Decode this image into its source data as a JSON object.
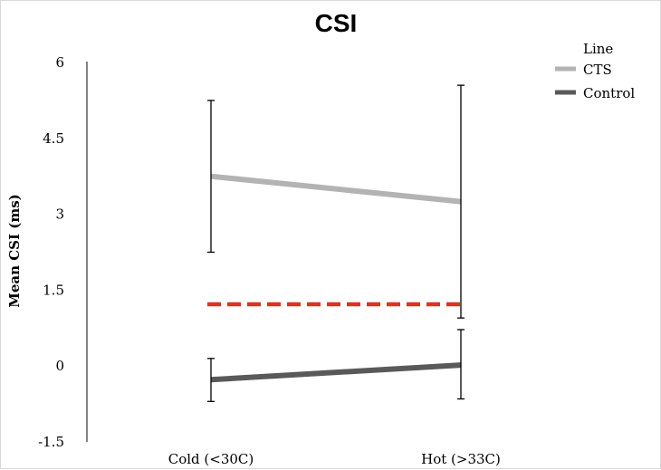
{
  "chart_data": {
    "type": "line",
    "title": "CSI",
    "xlabel": "",
    "ylabel": "Mean CSI (ms)",
    "categories": [
      "Cold (<30C)",
      "Hot (>33C)"
    ],
    "ylim": [
      -1.5,
      6
    ],
    "yticks": [
      "6",
      "4.5",
      "3",
      "1.5",
      "0",
      "-1.5"
    ],
    "ytick_values": [
      6,
      4.5,
      3,
      1.5,
      0,
      -1.5
    ],
    "legend": {
      "title": "Line",
      "position": "top-right"
    },
    "series": [
      {
        "name": "CTS",
        "color": "#b3b3b3",
        "values": [
          3.75,
          3.25
        ],
        "err_low": [
          2.25,
          0.95
        ],
        "err_high": [
          5.25,
          5.55
        ]
      },
      {
        "name": "Control",
        "color": "#595959",
        "values": [
          -0.27,
          0.02
        ],
        "err_low": [
          -0.7,
          -0.65
        ],
        "err_high": [
          0.15,
          0.72
        ]
      }
    ],
    "reference_line": {
      "value": 1.22,
      "color": "#e0301e",
      "style": "dashed"
    },
    "grid": false
  }
}
